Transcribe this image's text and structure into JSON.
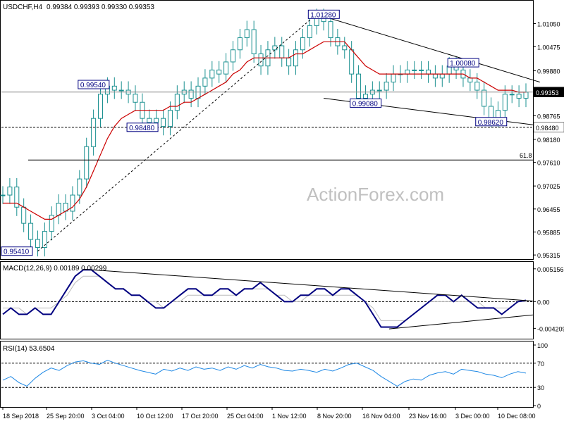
{
  "header": {
    "symbol": "USDCHF,H4",
    "ohlc": "0.99384 0.99393 0.99330 0.99353"
  },
  "watermark": "ActionForex.com",
  "colors": {
    "candle": "#1a9090",
    "ma": "#cc0000",
    "macd_line": "#000080",
    "signal_line": "#bbbbbb",
    "rsi_line": "#1e88e5",
    "trendline": "#000000",
    "label_border": "#000080",
    "label_text": "#000080",
    "watermark": "#c0c0c0"
  },
  "chart_data": [
    {
      "type": "line",
      "panel": "price",
      "yaxis_ticks": [
        "1.01050",
        "1.00475",
        "0.99880",
        "0.99353",
        "0.98765",
        "0.98180",
        "0.97610",
        "0.97025",
        "0.96455",
        "0.95885",
        "0.95315"
      ],
      "ylim": [
        0.9523,
        1.016
      ],
      "current_price_label": "0.99353",
      "support_label": "0.98480",
      "level_label": "61.8",
      "xaxis_ticks": [
        "18 Sep 2018",
        "25 Sep 20:00",
        "3 Oct 04:00",
        "10 Oct 12:00",
        "17 Oct 20:00",
        "25 Oct 04:00",
        "1 Nov 12:00",
        "8 Nov 20:00",
        "16 Nov 04:00",
        "23 Nov 16:00",
        "3 Dec 00:00",
        "10 Dec 08:00"
      ],
      "annotations": [
        "0.95410",
        "0.98480",
        "0.99540",
        "1.01280",
        "0.99080",
        "1.00080",
        "0.98620"
      ],
      "series": [
        {
          "values": [
            0.968,
            0.97,
            0.965,
            0.961,
            0.957,
            0.955,
            0.959,
            0.963,
            0.966,
            0.964,
            0.968,
            0.972,
            0.98,
            0.987,
            0.993,
            0.995,
            0.994,
            0.994,
            0.993,
            0.991,
            0.987,
            0.986,
            0.987,
            0.985,
            0.989,
            0.993,
            0.994,
            0.992,
            0.995,
            0.997,
            0.999,
            0.998,
            1.001,
            1.004,
            1.007,
            1.009,
            1.003,
            1.0,
            1.004,
            1.005,
            1.002,
            1.0,
            1.004,
            1.007,
            1.01,
            1.012,
            1.011,
            1.007,
            1.005,
            1.004,
            0.998,
            0.992,
            0.993,
            0.994,
            0.994,
            0.996,
            0.998,
            0.998,
            0.999,
            0.999,
            0.999,
            0.998,
            0.997,
            0.998,
            1.0,
            0.999,
            0.997,
            0.996,
            0.994,
            0.99,
            0.987,
            0.989,
            0.993,
            0.993,
            0.992,
            0.9935
          ]
        },
        {
          "values": [
            0.966,
            0.966,
            0.966,
            0.965,
            0.964,
            0.963,
            0.962,
            0.962,
            0.963,
            0.964,
            0.965,
            0.967,
            0.97,
            0.974,
            0.978,
            0.982,
            0.985,
            0.987,
            0.988,
            0.989,
            0.989,
            0.989,
            0.989,
            0.989,
            0.99,
            0.99,
            0.991,
            0.991,
            0.992,
            0.993,
            0.994,
            0.995,
            0.996,
            0.998,
            0.999,
            1.001,
            1.002,
            1.002,
            1.002,
            1.002,
            1.002,
            1.002,
            1.003,
            1.003,
            1.004,
            1.005,
            1.006,
            1.006,
            1.006,
            1.006,
            1.004,
            1.002,
            1.0,
            0.999,
            0.998,
            0.998,
            0.998,
            0.998,
            0.998,
            0.998,
            0.998,
            0.998,
            0.998,
            0.998,
            0.998,
            0.998,
            0.998,
            0.997,
            0.997,
            0.996,
            0.995,
            0.994,
            0.994,
            0.994,
            0.9935,
            0.9935
          ]
        }
      ]
    },
    {
      "type": "line",
      "panel": "macd",
      "label": "MACD(12,26,9) 0.00189 0.00299",
      "yaxis_ticks": [
        "0.005156",
        "0.00",
        "-0.004209"
      ],
      "ylim": [
        -0.0055,
        0.0058
      ],
      "series": [
        {
          "values": [
            -0.002,
            -0.001,
            -0.002,
            -0.002,
            -0.001,
            -0.002,
            -0.002,
            0.0,
            0.002,
            0.004,
            0.005,
            0.005,
            0.004,
            0.003,
            0.002,
            0.002,
            0.001,
            0.001,
            0.0,
            -0.001,
            -0.001,
            0.0,
            0.001,
            0.002,
            0.002,
            0.001,
            0.001,
            0.002,
            0.002,
            0.001,
            0.002,
            0.002,
            0.003,
            0.002,
            0.001,
            0.0,
            0.0,
            0.001,
            0.001,
            0.002,
            0.002,
            0.001,
            0.002,
            0.002,
            0.001,
            0.0,
            -0.002,
            -0.004,
            -0.004,
            -0.004,
            -0.003,
            -0.002,
            -0.001,
            0.0,
            0.001,
            0.001,
            0.0,
            0.001,
            0.0,
            -0.001,
            -0.001,
            -0.001,
            -0.002,
            -0.001,
            0.0,
            0.0002
          ]
        },
        {
          "values": [
            -0.001,
            -0.001,
            -0.001,
            -0.002,
            -0.001,
            -0.001,
            -0.001,
            0.0,
            0.001,
            0.003,
            0.004,
            0.004,
            0.004,
            0.003,
            0.002,
            0.002,
            0.001,
            0.001,
            0.0,
            0.0,
            -0.001,
            0.0,
            0.0,
            0.001,
            0.001,
            0.001,
            0.001,
            0.001,
            0.001,
            0.001,
            0.002,
            0.002,
            0.002,
            0.002,
            0.001,
            0.001,
            0.0,
            0.0,
            0.001,
            0.001,
            0.001,
            0.001,
            0.001,
            0.001,
            0.001,
            0.0,
            -0.001,
            -0.003,
            -0.003,
            -0.003,
            -0.003,
            -0.002,
            -0.001,
            0.0,
            0.0,
            0.0,
            0.0,
            0.0,
            0.0,
            0.0,
            -0.001,
            -0.001,
            -0.001,
            -0.001,
            0.0,
            0.0
          ]
        }
      ]
    },
    {
      "type": "line",
      "panel": "rsi",
      "label": "RSI(14) 53.6504",
      "yaxis_ticks": [
        "100",
        "70",
        "30",
        "0"
      ],
      "ylim": [
        0,
        100
      ],
      "series": [
        {
          "values": [
            42,
            48,
            38,
            32,
            45,
            55,
            62,
            58,
            66,
            72,
            74,
            70,
            68,
            75,
            70,
            66,
            62,
            58,
            55,
            52,
            60,
            57,
            62,
            58,
            64,
            60,
            62,
            58,
            64,
            60,
            66,
            62,
            68,
            64,
            62,
            58,
            57,
            60,
            58,
            55,
            60,
            57,
            62,
            68,
            70,
            64,
            58,
            48,
            40,
            32,
            40,
            44,
            42,
            50,
            54,
            56,
            52,
            60,
            58,
            56,
            52,
            50,
            46,
            52,
            56,
            53.65
          ]
        }
      ]
    }
  ]
}
